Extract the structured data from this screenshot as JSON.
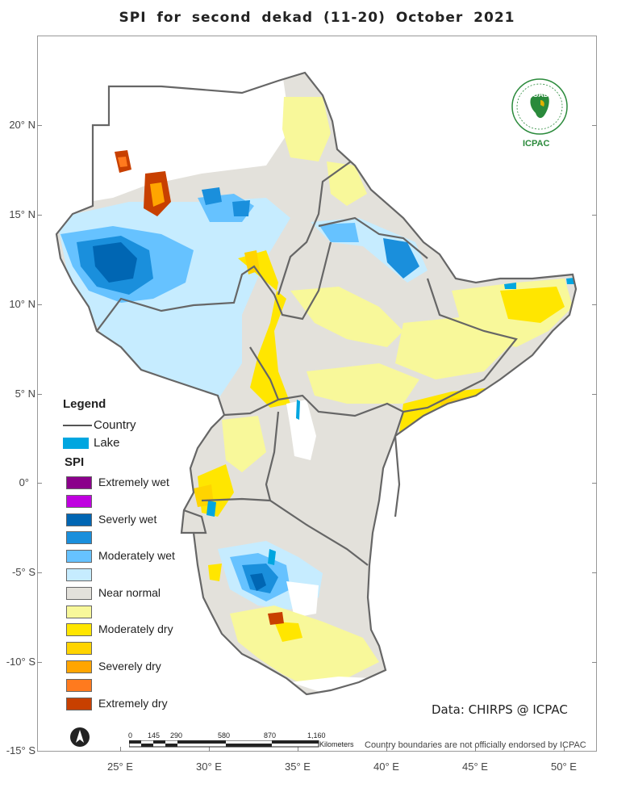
{
  "title": "SPI   for   second  dekad (11-20)  October  2021",
  "lat_labels": [
    "20° N",
    "15° N",
    "10° N",
    "5° N",
    "0°",
    "-5° S",
    "-10° S",
    "-15° S"
  ],
  "lon_labels": [
    "25° E",
    "30° E",
    "35° E",
    "40° E",
    "45° E",
    "50° E"
  ],
  "legend": {
    "heading": "Legend",
    "country_label": "Country",
    "lake_label": "Lake",
    "lake_color": "#00a6e0",
    "spi_title": "SPI",
    "classes": [
      {
        "label": "Extremely wet",
        "color": "#8b008b"
      },
      {
        "label": "",
        "color": "#c000e0"
      },
      {
        "label": "Severly wet",
        "color": "#0066b3"
      },
      {
        "label": "",
        "color": "#1a8fdc"
      },
      {
        "label": "Moderately wet",
        "color": "#66c2ff"
      },
      {
        "label": "",
        "color": "#c6ecff"
      },
      {
        "label": "Near normal",
        "color": "#e3e1db"
      },
      {
        "label": "",
        "color": "#f8f89a"
      },
      {
        "label": "Moderately dry",
        "color": "#ffe600"
      },
      {
        "label": "",
        "color": "#ffd400"
      },
      {
        "label": "Severely dry",
        "color": "#ffa500"
      },
      {
        "label": "",
        "color": "#ff7a1e"
      },
      {
        "label": "Extremely dry",
        "color": "#c84000"
      }
    ]
  },
  "credit": "Data: CHIRPS @ ICPAC",
  "endorsement": "Country boundaries are not officially endorsed by ICPAC",
  "scale_bar": {
    "ticks": [
      "0",
      "145",
      "290",
      "580",
      "870",
      "1,160"
    ],
    "unit": "Kilometers"
  },
  "logo": {
    "name": "IGAD",
    "org": "ICPAC"
  },
  "north_arrow": "north-arrow-icon"
}
